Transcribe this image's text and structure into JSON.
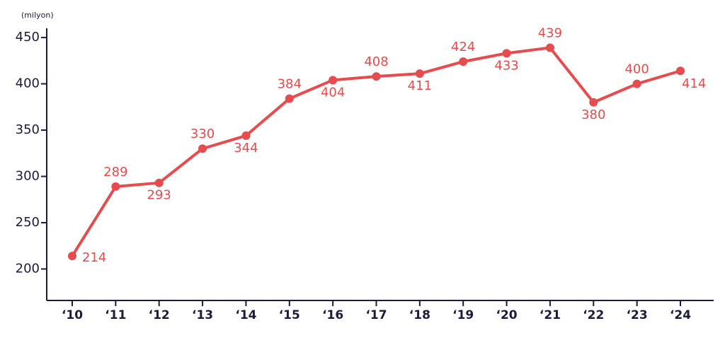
{
  "chart_data": {
    "type": "line",
    "y_label": "(milyon)",
    "categories": [
      "‘10",
      "‘11",
      "‘12",
      "‘13",
      "‘14",
      "‘15",
      "‘16",
      "‘17",
      "‘18",
      "‘19",
      "‘20",
      "‘21",
      "‘22",
      "‘23",
      "‘24"
    ],
    "series": [
      {
        "name": "milyon",
        "color": "#e64b4e",
        "values": [
          214,
          289,
          293,
          330,
          344,
          384,
          404,
          408,
          411,
          424,
          433,
          439,
          380,
          400,
          414
        ]
      }
    ],
    "ylim": [
      166,
      460
    ],
    "yticks": [
      200,
      250,
      300,
      350,
      400,
      450
    ],
    "grid": false
  }
}
